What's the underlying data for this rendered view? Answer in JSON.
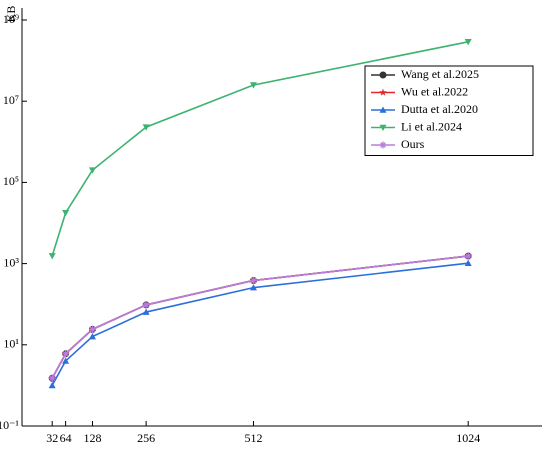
{
  "chart_data": {
    "type": "line",
    "y_label": "KB",
    "log_y": true,
    "x": [
      32,
      64,
      128,
      256,
      512,
      1024
    ],
    "xlim": [
      -40,
      1200
    ],
    "xticks": [
      32,
      64,
      128,
      256,
      512,
      1024
    ],
    "ylim": [
      0.1,
      1000000000
    ],
    "yticks": [
      {
        "value": 0.1,
        "label": "10⁻¹"
      },
      {
        "value": 10,
        "label": "10¹"
      },
      {
        "value": 1000,
        "label": "10³"
      },
      {
        "value": 100000,
        "label": "10⁵"
      },
      {
        "value": 10000000,
        "label": "10⁷"
      },
      {
        "value": 1000000000,
        "label": "10⁹"
      }
    ],
    "legend": "upper right",
    "series": [
      {
        "name": "Wang et al.2025",
        "color": "#333333",
        "marker": "circle",
        "values": [
          1.5,
          6,
          24,
          96,
          384,
          1536
        ]
      },
      {
        "name": "Wu et al.2022",
        "color": "#e8262a",
        "marker": "star",
        "values": [
          1.5,
          6,
          24,
          96,
          384,
          1536
        ]
      },
      {
        "name": "Dutta et al.2020",
        "color": "#2a6fdb",
        "marker": "triangle-up",
        "values": [
          1,
          4,
          16,
          64,
          256,
          1024
        ]
      },
      {
        "name": "Li et al.2024",
        "color": "#3cb371",
        "marker": "triangle-down",
        "values": [
          1550,
          17800,
          200000,
          2300000,
          25000000,
          290000000
        ]
      },
      {
        "name": "Ours",
        "color": "#b57edc",
        "marker": "asterisk",
        "values": [
          1.5,
          6,
          24,
          96,
          384,
          1536
        ]
      }
    ]
  }
}
